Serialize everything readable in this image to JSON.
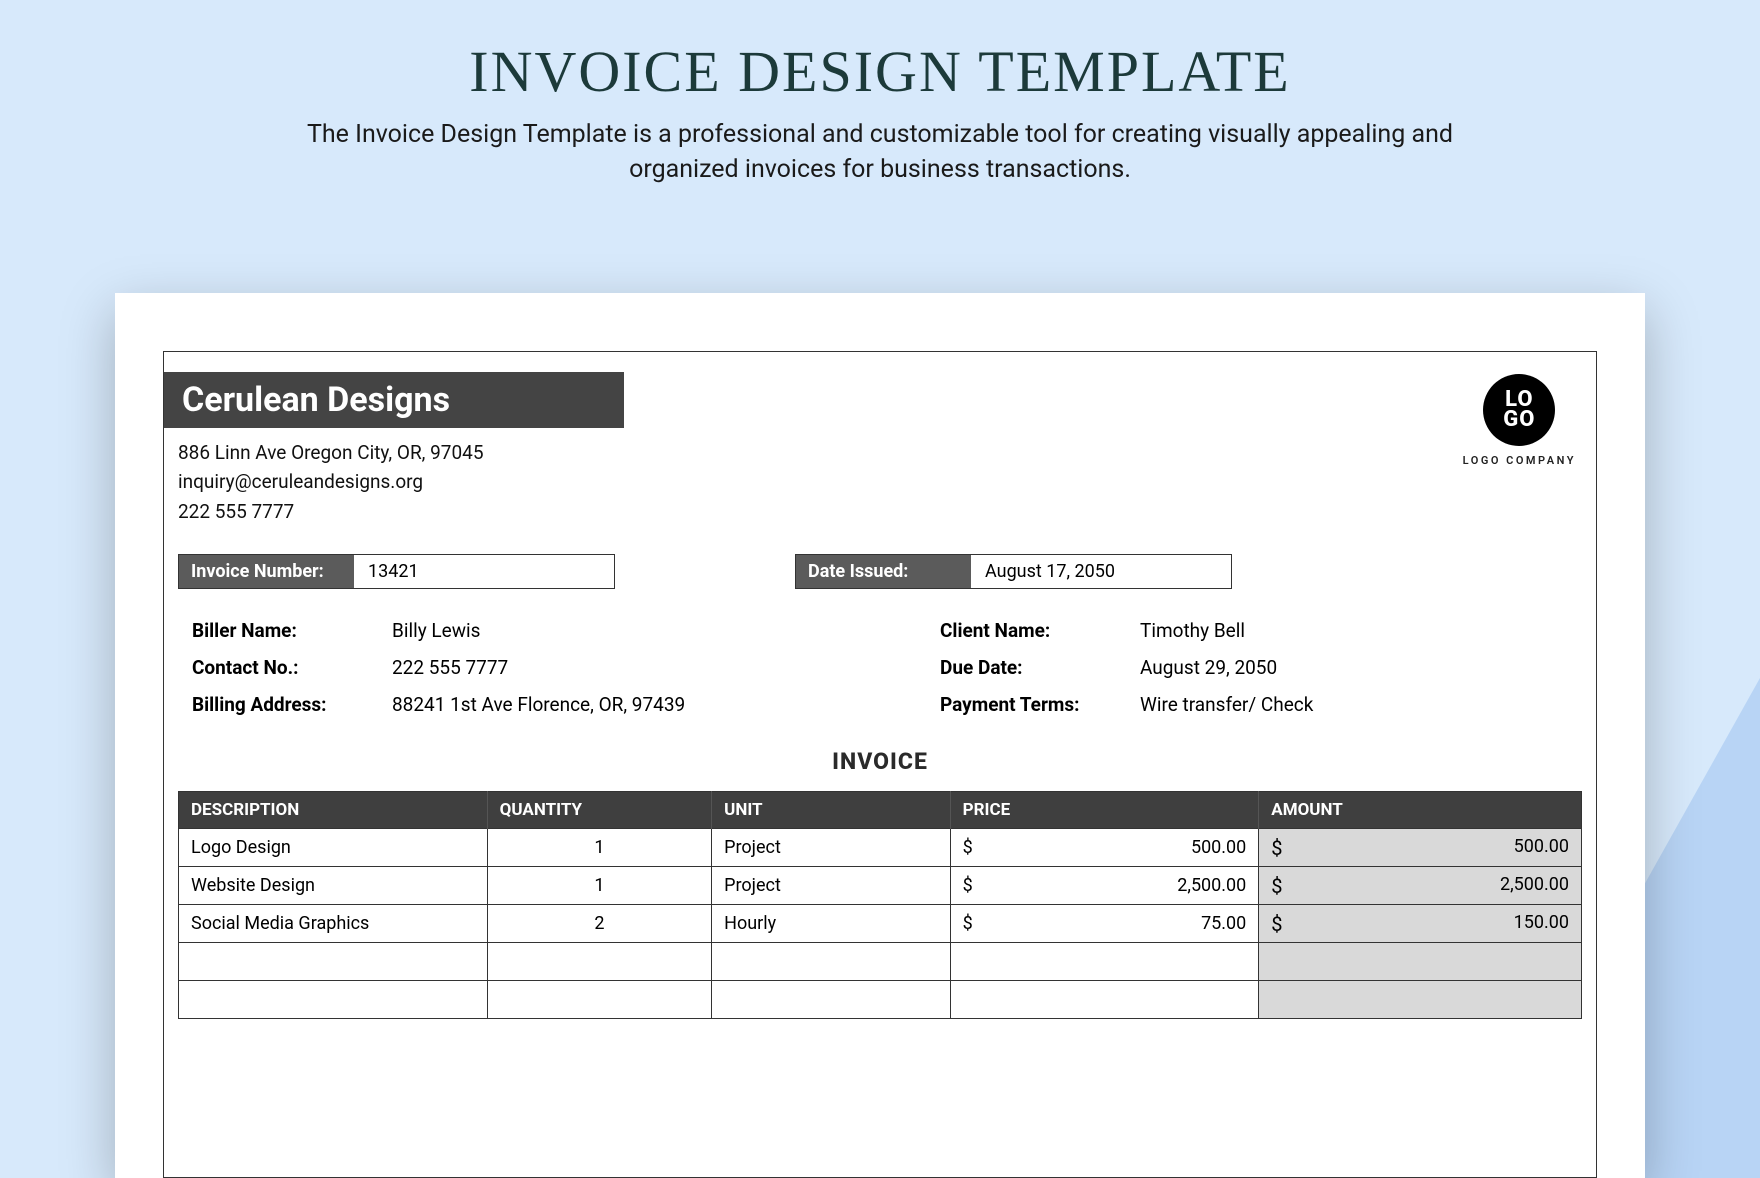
{
  "page": {
    "title": "INVOICE DESIGN TEMPLATE",
    "subtitle": "The Invoice Design Template is a professional and customizable tool for creating visually appealing and organized invoices for business transactions."
  },
  "colors": {
    "page_bg": "#d7e9fb",
    "accent_corner": "#b8d4f5",
    "title_color": "#1c3a3a",
    "doc_bg": "#ffffff",
    "bar_bg": "#444444",
    "bar_text": "#ffffff",
    "meta_key_bg": "#5b5b5b",
    "table_header_bg": "#3f3f3f",
    "amount_col_bg": "#d9d9d9",
    "border": "#333333"
  },
  "company": {
    "name": "Cerulean Designs",
    "address": "886 Linn Ave Oregon City, OR, 97045",
    "email": "inquiry@ceruleandesigns.org",
    "phone": "222 555 7777"
  },
  "logo": {
    "top": "LO",
    "bottom": "GO",
    "caption": "LOGO COMPANY"
  },
  "meta": {
    "invoice_number_label": "Invoice Number:",
    "invoice_number": "13421",
    "date_issued_label": "Date Issued:",
    "date_issued": "August 17, 2050"
  },
  "biller": {
    "name_label": "Biller Name:",
    "name": "Billy Lewis",
    "contact_label": "Contact No.:",
    "contact": "222 555 7777",
    "address_label": "Billing Address:",
    "address": "88241 1st Ave Florence, OR, 97439"
  },
  "client": {
    "name_label": "Client Name:",
    "name": "Timothy Bell",
    "due_label": "Due Date:",
    "due": "August 29, 2050",
    "terms_label": "Payment Terms:",
    "terms": "Wire transfer/ Check"
  },
  "invoice_heading": "INVOICE",
  "table": {
    "columns": {
      "description": "DESCRIPTION",
      "quantity": "QUANTITY",
      "unit": "UNIT",
      "price": "PRICE",
      "amount": "AMOUNT"
    },
    "currency": "$",
    "rows": [
      {
        "description": "Logo Design",
        "quantity": "1",
        "unit": "Project",
        "price": "500.00",
        "amount": "500.00"
      },
      {
        "description": "Website Design",
        "quantity": "1",
        "unit": "Project",
        "price": "2,500.00",
        "amount": "2,500.00"
      },
      {
        "description": "Social Media Graphics",
        "quantity": "2",
        "unit": "Hourly",
        "price": "75.00",
        "amount": "150.00"
      }
    ],
    "empty_rows": 2
  }
}
